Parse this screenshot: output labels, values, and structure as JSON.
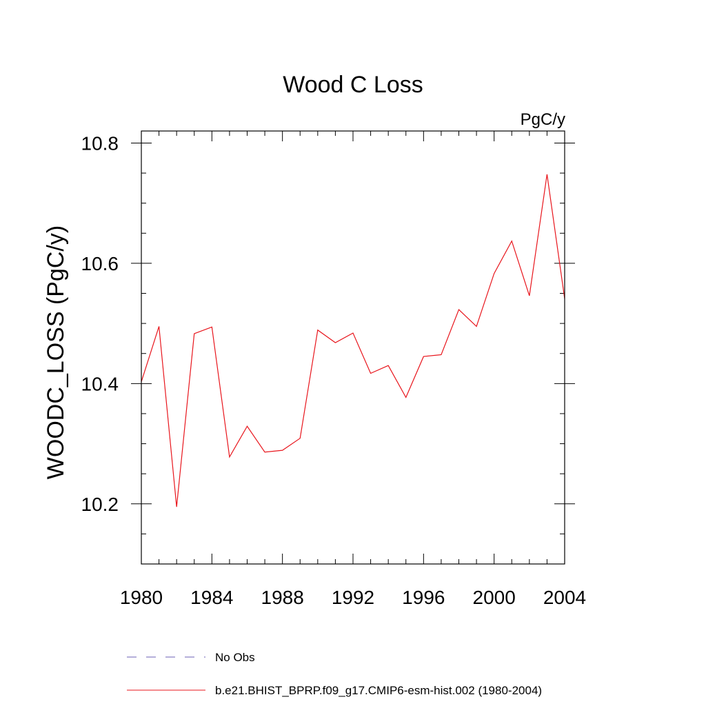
{
  "chart_data": {
    "type": "line",
    "title": "Wood C Loss",
    "units_label": "PgC/y",
    "xlabel": "",
    "ylabel": "WOODC_LOSS  (PgC/y)",
    "xlim": [
      1980,
      2004
    ],
    "ylim": [
      10.1,
      10.82
    ],
    "x_major_ticks": [
      1980,
      1984,
      1988,
      1992,
      1996,
      2000,
      2004
    ],
    "x_minor_step": 1,
    "y_major_ticks": [
      10.2,
      10.4,
      10.6,
      10.8
    ],
    "y_tick_labels": [
      "10.2",
      "10.4",
      "10.6",
      "10.8"
    ],
    "y_minor_step": 0.05,
    "grid": false,
    "legend": [
      {
        "name": "No Obs",
        "color": "#6b5fb5",
        "style": "dashed"
      },
      {
        "name": "b.e21.BHIST_BPRP.f09_g17.CMIP6-esm-hist.002 (1980-2004)",
        "color": "#e8141b",
        "style": "solid"
      }
    ],
    "series": [
      {
        "name": "b.e21.BHIST_BPRP.f09_g17.CMIP6-esm-hist.002 (1980-2004)",
        "color": "#e8141b",
        "x": [
          1980,
          1981,
          1982,
          1983,
          1984,
          1985,
          1986,
          1987,
          1988,
          1989,
          1990,
          1991,
          1992,
          1993,
          1994,
          1995,
          1996,
          1997,
          1998,
          1999,
          2000,
          2001,
          2002,
          2003,
          2004
        ],
        "values": [
          10.403,
          10.495,
          10.195,
          10.483,
          10.494,
          10.278,
          10.329,
          10.286,
          10.289,
          10.309,
          10.489,
          10.468,
          10.484,
          10.417,
          10.43,
          10.377,
          10.445,
          10.448,
          10.523,
          10.495,
          10.583,
          10.637,
          10.546,
          10.748,
          10.541
        ]
      }
    ]
  }
}
